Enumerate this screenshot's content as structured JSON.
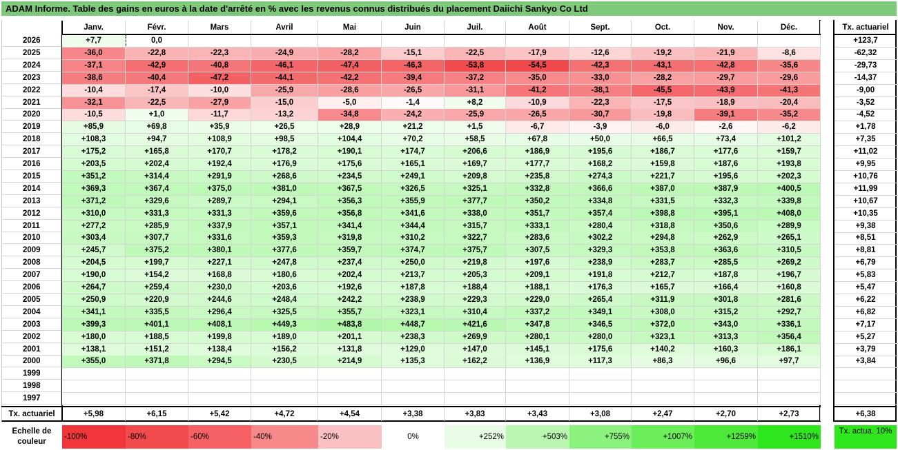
{
  "title": "ADAM Informe. Table des gains en euros à la date d'arrêté en % avec les revenus connus distribués du placement Daiichi Sankyo Co Ltd",
  "months": [
    "Janv.",
    "Févr.",
    "Mars",
    "Avril",
    "Mai",
    "Juin",
    "Juil.",
    "Août",
    "Sept.",
    "Oct.",
    "Nov.",
    "Déc."
  ],
  "right_header": "Tx. actuariel",
  "footer_label": "Tx. actuariel",
  "footer_values": [
    "+5,98",
    "+6,15",
    "+5,42",
    "+4,72",
    "+4,54",
    "+3,38",
    "+3,83",
    "+3,43",
    "+3,08",
    "+2,47",
    "+2,70",
    "+2,73"
  ],
  "footer_right": "+6,38",
  "scale": {
    "label": "Echelle de couleur",
    "items": [
      {
        "text": "-100%",
        "color": "#f0363a",
        "align": "left"
      },
      {
        "text": "-80%",
        "color": "#f24b4e",
        "align": "left"
      },
      {
        "text": "-60%",
        "color": "#f56164",
        "align": "left"
      },
      {
        "text": "-40%",
        "color": "#f7898b",
        "align": "left"
      },
      {
        "text": "-20%",
        "color": "#fbc1c2",
        "align": "left"
      },
      {
        "text": "0%",
        "color": "#ffffff",
        "align": "center"
      },
      {
        "text": "+252%",
        "color": "#e9fce6",
        "align": "right"
      },
      {
        "text": "+503%",
        "color": "#b9f7b0",
        "align": "right"
      },
      {
        "text": "+755%",
        "color": "#8cf27e",
        "align": "right"
      },
      {
        "text": "+1007%",
        "color": "#6ced5a",
        "align": "right"
      },
      {
        "text": "+1259%",
        "color": "#4de83a",
        "align": "right"
      },
      {
        "text": "+1510%",
        "color": "#2de61b",
        "align": "right"
      }
    ],
    "right_label": "Tx. actua. 10%",
    "right_color": "#2de61b"
  },
  "chart_data": {
    "type": "heatmap",
    "title": "ADAM Informe. Table des gains en euros à la date d'arrêté en % avec les revenus connus distribués du placement Daiichi Sankyo Co Ltd",
    "columns": [
      "Janv.",
      "Févr.",
      "Mars",
      "Avril",
      "Mai",
      "Juin",
      "Juil.",
      "Août",
      "Sept.",
      "Oct.",
      "Nov.",
      "Déc.",
      "Tx. actuariel"
    ],
    "rows": [
      {
        "year": "2026",
        "values": [
          "+7,7",
          "0,0",
          "",
          "",
          "",
          "",
          "",
          "",
          "",
          "",
          "",
          ""
        ],
        "rate": "+123,7"
      },
      {
        "year": "2025",
        "values": [
          "-36,0",
          "-22,8",
          "-22,3",
          "-24,9",
          "-28,2",
          "-15,1",
          "-22,5",
          "-17,9",
          "-12,6",
          "-19,2",
          "-21,9",
          "-8,6"
        ],
        "rate": "-62,32"
      },
      {
        "year": "2024",
        "values": [
          "-37,1",
          "-42,9",
          "-40,8",
          "-46,1",
          "-47,4",
          "-46,3",
          "-53,8",
          "-54,5",
          "-42,3",
          "-43,1",
          "-42,8",
          "-35,6"
        ],
        "rate": "-29,73"
      },
      {
        "year": "2023",
        "values": [
          "-38,6",
          "-40,4",
          "-47,2",
          "-44,1",
          "-42,2",
          "-39,4",
          "-37,2",
          "-35,0",
          "-33,0",
          "-28,2",
          "-29,7",
          "-29,6"
        ],
        "rate": "-14,37"
      },
      {
        "year": "2022",
        "values": [
          "-10,4",
          "-17,4",
          "-10,0",
          "-25,9",
          "-28,6",
          "-26,5",
          "-31,1",
          "-41,2",
          "-38,1",
          "-45,5",
          "-43,9",
          "-41,3"
        ],
        "rate": "-9,00"
      },
      {
        "year": "2021",
        "values": [
          "-32,1",
          "-22,5",
          "-27,9",
          "-15,0",
          "-5,0",
          "-1,4",
          "+8,2",
          "-10,9",
          "-22,3",
          "-17,5",
          "-18,9",
          "-20,4"
        ],
        "rate": "-3,52"
      },
      {
        "year": "2020",
        "values": [
          "-10,5",
          "+1,0",
          "-11,7",
          "-13,2",
          "-34,8",
          "-24,2",
          "-25,9",
          "-26,5",
          "-30,7",
          "-19,8",
          "-39,1",
          "-35,2"
        ],
        "rate": "-4,52"
      },
      {
        "year": "2019",
        "values": [
          "+85,9",
          "+69,8",
          "+35,9",
          "+26,5",
          "+28,9",
          "+21,2",
          "+1,5",
          "-6,7",
          "-3,9",
          "-6,0",
          "-2,6",
          "-6,2"
        ],
        "rate": "+1,78"
      },
      {
        "year": "2018",
        "values": [
          "+108,3",
          "+94,7",
          "+108,9",
          "+98,5",
          "+104,4",
          "+70,2",
          "+58,5",
          "+67,8",
          "+50,0",
          "+66,5",
          "+73,4",
          "+101,2"
        ],
        "rate": "+7,35"
      },
      {
        "year": "2017",
        "values": [
          "+175,2",
          "+165,8",
          "+170,7",
          "+178,2",
          "+190,1",
          "+174,7",
          "+206,6",
          "+186,9",
          "+195,6",
          "+186,7",
          "+177,6",
          "+159,7"
        ],
        "rate": "+11,02"
      },
      {
        "year": "2016",
        "values": [
          "+203,5",
          "+202,4",
          "+192,4",
          "+176,9",
          "+175,6",
          "+165,1",
          "+169,7",
          "+177,7",
          "+168,2",
          "+159,8",
          "+187,6",
          "+193,8"
        ],
        "rate": "+9,95"
      },
      {
        "year": "2015",
        "values": [
          "+351,2",
          "+314,4",
          "+291,9",
          "+268,6",
          "+234,5",
          "+249,1",
          "+209,8",
          "+235,8",
          "+274,3",
          "+221,7",
          "+195,6",
          "+202,3"
        ],
        "rate": "+10,76"
      },
      {
        "year": "2014",
        "values": [
          "+369,3",
          "+367,4",
          "+375,0",
          "+381,0",
          "+367,5",
          "+326,5",
          "+325,1",
          "+332,8",
          "+366,6",
          "+387,0",
          "+387,9",
          "+400,5"
        ],
        "rate": "+11,99"
      },
      {
        "year": "2013",
        "values": [
          "+371,2",
          "+329,6",
          "+289,7",
          "+294,1",
          "+356,3",
          "+355,9",
          "+377,7",
          "+350,2",
          "+334,8",
          "+331,5",
          "+332,3",
          "+339,8"
        ],
        "rate": "+10,67"
      },
      {
        "year": "2012",
        "values": [
          "+310,0",
          "+331,3",
          "+331,3",
          "+359,6",
          "+356,8",
          "+341,6",
          "+338,0",
          "+351,7",
          "+357,4",
          "+398,8",
          "+395,1",
          "+408,0"
        ],
        "rate": "+10,35"
      },
      {
        "year": "2011",
        "values": [
          "+277,2",
          "+285,9",
          "+337,9",
          "+357,1",
          "+341,4",
          "+344,4",
          "+315,7",
          "+333,1",
          "+280,4",
          "+318,8",
          "+350,6",
          "+289,9"
        ],
        "rate": "+9,38"
      },
      {
        "year": "2010",
        "values": [
          "+303,4",
          "+307,7",
          "+331,6",
          "+359,3",
          "+319,8",
          "+310,2",
          "+322,7",
          "+283,6",
          "+302,2",
          "+294,8",
          "+262,9",
          "+265,1"
        ],
        "rate": "+8,51"
      },
      {
        "year": "2009",
        "values": [
          "+245,7",
          "+375,2",
          "+380,1",
          "+377,6",
          "+359,7",
          "+374,7",
          "+375,7",
          "+307,5",
          "+329,3",
          "+353,8",
          "+363,6",
          "+310,5"
        ],
        "rate": "+8,81"
      },
      {
        "year": "2008",
        "values": [
          "+204,5",
          "+199,7",
          "+227,1",
          "+247,8",
          "+237,4",
          "+250,0",
          "+219,8",
          "+197,6",
          "+238,9",
          "+283,7",
          "+285,5",
          "+269,2"
        ],
        "rate": "+6,79"
      },
      {
        "year": "2007",
        "values": [
          "+190,0",
          "+154,2",
          "+168,8",
          "+180,6",
          "+202,4",
          "+213,7",
          "+205,3",
          "+209,1",
          "+191,8",
          "+212,7",
          "+187,8",
          "+196,7"
        ],
        "rate": "+5,83"
      },
      {
        "year": "2006",
        "values": [
          "+264,7",
          "+259,4",
          "+230,0",
          "+203,6",
          "+192,6",
          "+187,8",
          "+188,4",
          "+188,1",
          "+176,3",
          "+165,7",
          "+166,4",
          "+160,8"
        ],
        "rate": "+5,47"
      },
      {
        "year": "2005",
        "values": [
          "+250,9",
          "+220,9",
          "+244,6",
          "+248,4",
          "+242,2",
          "+238,9",
          "+229,3",
          "+229,0",
          "+265,4",
          "+311,9",
          "+301,8",
          "+281,6"
        ],
        "rate": "+6,22"
      },
      {
        "year": "2004",
        "values": [
          "+341,1",
          "+335,5",
          "+296,4",
          "+325,5",
          "+355,7",
          "+323,1",
          "+310,4",
          "+337,2",
          "+349,1",
          "+308,0",
          "+315,2",
          "+292,7"
        ],
        "rate": "+6,82"
      },
      {
        "year": "2003",
        "values": [
          "+399,3",
          "+401,1",
          "+408,1",
          "+449,3",
          "+483,8",
          "+448,7",
          "+421,6",
          "+347,8",
          "+346,5",
          "+372,0",
          "+343,0",
          "+336,1"
        ],
        "rate": "+7,17"
      },
      {
        "year": "2002",
        "values": [
          "+180,0",
          "+188,5",
          "+199,8",
          "+189,0",
          "+201,1",
          "+238,3",
          "+269,9",
          "+280,1",
          "+280,0",
          "+323,1",
          "+313,3",
          "+356,4"
        ],
        "rate": "+5,27"
      },
      {
        "year": "2001",
        "values": [
          "+138,1",
          "+151,2",
          "+138,4",
          "+156,2",
          "+131,8",
          "+129,0",
          "+147,0",
          "+145,1",
          "+175,6",
          "+140,2",
          "+160,3",
          "+186,1"
        ],
        "rate": "+3,79"
      },
      {
        "year": "2000",
        "values": [
          "+355,0",
          "+371,8",
          "+294,5",
          "+230,5",
          "+214,9",
          "+135,3",
          "+162,2",
          "+136,9",
          "+117,3",
          "+86,3",
          "+96,6",
          "+97,7"
        ],
        "rate": "+3,84"
      },
      {
        "year": "1999",
        "values": [
          "",
          "",
          "",
          "",
          "",
          "",
          "",
          "",
          "",
          "",
          "",
          ""
        ],
        "rate": ""
      },
      {
        "year": "1998",
        "values": [
          "",
          "",
          "",
          "",
          "",
          "",
          "",
          "",
          "",
          "",
          "",
          ""
        ],
        "rate": ""
      },
      {
        "year": "1997",
        "values": [
          "",
          "",
          "",
          "",
          "",
          "",
          "",
          "",
          "",
          "",
          "",
          ""
        ],
        "rate": ""
      }
    ]
  }
}
